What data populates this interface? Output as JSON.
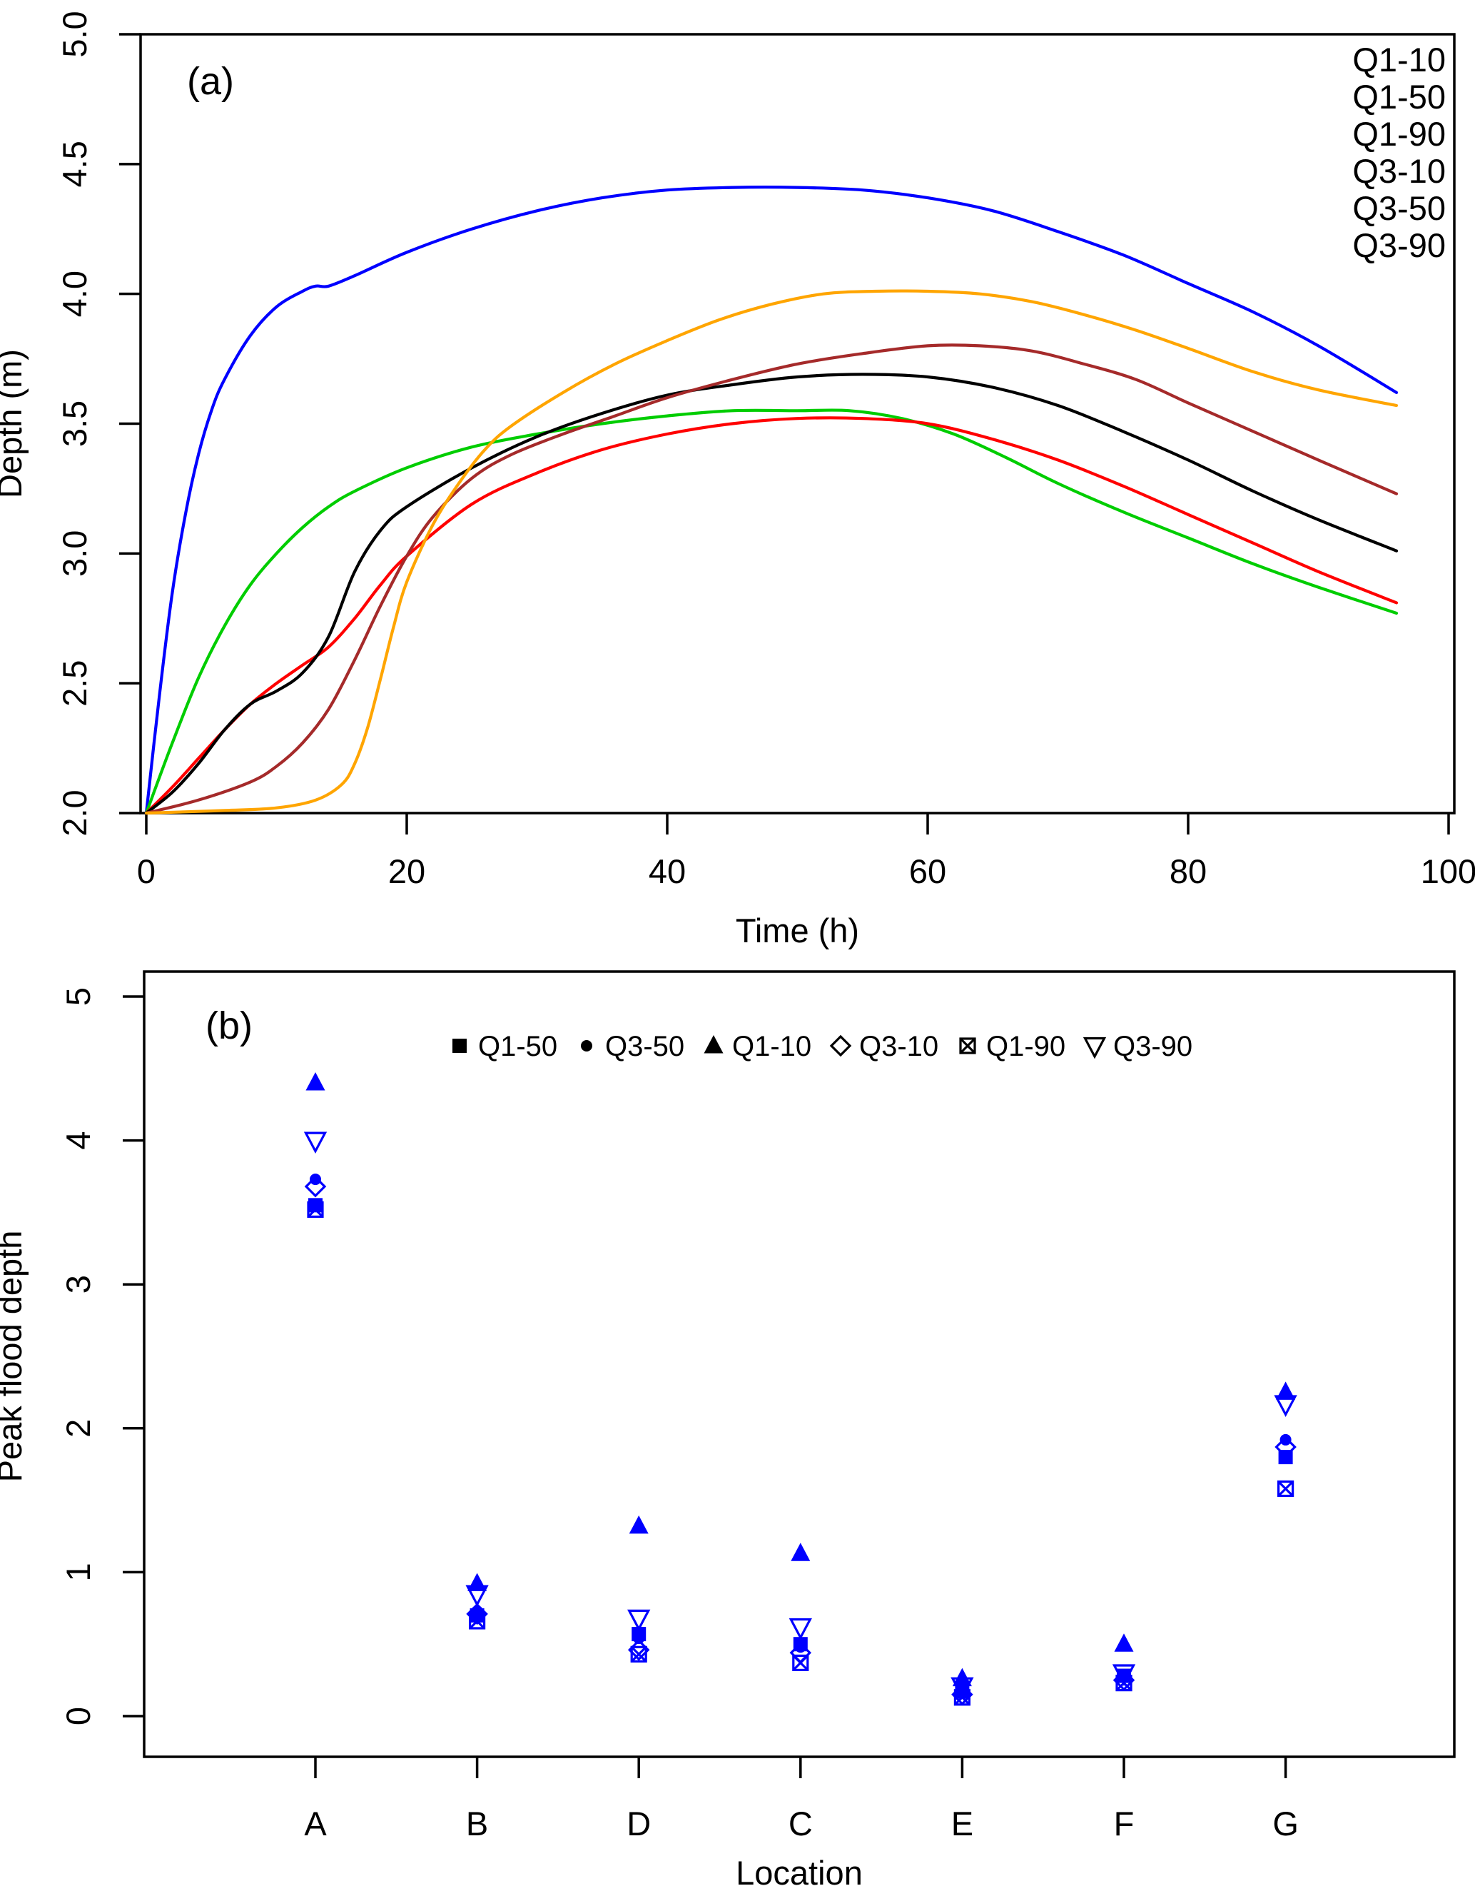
{
  "figure": {
    "background": "#ffffff",
    "marker_blue": "#0000ff"
  },
  "chart_data": [
    {
      "type": "line",
      "panel_label": "(a)",
      "xlabel": "Time (h)",
      "ylabel": "Depth (m)",
      "xlim": [
        0,
        100
      ],
      "ylim": [
        2.0,
        5.0
      ],
      "grid": false,
      "legend_position": "top-right",
      "xticks": [
        {
          "v": 0,
          "label": "0"
        },
        {
          "v": 20,
          "label": "20"
        },
        {
          "v": 40,
          "label": "40"
        },
        {
          "v": 60,
          "label": "60"
        },
        {
          "v": 80,
          "label": "80"
        },
        {
          "v": 100,
          "label": "100"
        }
      ],
      "yticks": [
        {
          "v": 2.0,
          "label": "2.0"
        },
        {
          "v": 2.5,
          "label": "2.5"
        },
        {
          "v": 3.0,
          "label": "3.0"
        },
        {
          "v": 3.5,
          "label": "3.5"
        },
        {
          "v": 4.0,
          "label": "4.0"
        },
        {
          "v": 4.5,
          "label": "4.5"
        },
        {
          "v": 5.0,
          "label": "5.0"
        }
      ],
      "series": [
        {
          "name": "Q1-10",
          "color": "#0000ff",
          "x": [
            0,
            1,
            2,
            3,
            4,
            5,
            6,
            8,
            10,
            12,
            13,
            14,
            16,
            20,
            25,
            30,
            35,
            40,
            45,
            50,
            55,
            60,
            65,
            70,
            75,
            80,
            85,
            90,
            96
          ],
          "y": [
            2.0,
            2.45,
            2.85,
            3.15,
            3.38,
            3.55,
            3.67,
            3.84,
            3.95,
            4.01,
            4.03,
            4.03,
            4.07,
            4.16,
            4.25,
            4.32,
            4.37,
            4.4,
            4.41,
            4.41,
            4.4,
            4.37,
            4.32,
            4.24,
            4.15,
            4.04,
            3.93,
            3.8,
            3.62
          ]
        },
        {
          "name": "Q1-50",
          "color": "#00cd00",
          "x": [
            0,
            2,
            4,
            6,
            8,
            10,
            12,
            14,
            16,
            20,
            25,
            30,
            35,
            40,
            45,
            50,
            54,
            58,
            62,
            66,
            70,
            75,
            80,
            85,
            90,
            96
          ],
          "y": [
            2.0,
            2.27,
            2.52,
            2.72,
            2.88,
            3.0,
            3.1,
            3.18,
            3.24,
            3.33,
            3.41,
            3.46,
            3.5,
            3.53,
            3.55,
            3.55,
            3.55,
            3.52,
            3.46,
            3.37,
            3.27,
            3.16,
            3.06,
            2.96,
            2.87,
            2.77
          ]
        },
        {
          "name": "Q1-90",
          "color": "#ff0000",
          "x": [
            0,
            2,
            4,
            6,
            8,
            10,
            12,
            14,
            16,
            18,
            20,
            25,
            30,
            35,
            40,
            45,
            50,
            55,
            60,
            65,
            70,
            75,
            80,
            85,
            90,
            96
          ],
          "y": [
            2.0,
            2.1,
            2.21,
            2.32,
            2.42,
            2.5,
            2.57,
            2.64,
            2.75,
            2.88,
            2.99,
            3.19,
            3.31,
            3.4,
            3.46,
            3.5,
            3.52,
            3.52,
            3.5,
            3.44,
            3.36,
            3.26,
            3.15,
            3.04,
            2.93,
            2.81
          ]
        },
        {
          "name": "Q3-10",
          "color": "#000000",
          "x": [
            0,
            2,
            4,
            6,
            8,
            10,
            12,
            14,
            16,
            18,
            20,
            25,
            30,
            35,
            40,
            45,
            50,
            55,
            60,
            65,
            70,
            75,
            80,
            85,
            90,
            96
          ],
          "y": [
            2.0,
            2.08,
            2.19,
            2.32,
            2.42,
            2.47,
            2.54,
            2.68,
            2.93,
            3.09,
            3.18,
            3.33,
            3.45,
            3.54,
            3.61,
            3.65,
            3.68,
            3.69,
            3.68,
            3.64,
            3.57,
            3.47,
            3.36,
            3.24,
            3.13,
            3.01
          ]
        },
        {
          "name": "Q3-50",
          "color": "#a52a2a",
          "x": [
            0,
            4,
            8,
            10,
            12,
            14,
            16,
            18,
            20,
            22,
            25,
            28,
            32,
            36,
            40,
            45,
            50,
            55,
            60,
            64,
            68,
            72,
            76,
            80,
            85,
            90,
            96
          ],
          "y": [
            2.0,
            2.05,
            2.12,
            2.18,
            2.27,
            2.4,
            2.59,
            2.8,
            2.99,
            3.14,
            3.29,
            3.38,
            3.46,
            3.53,
            3.6,
            3.67,
            3.73,
            3.77,
            3.8,
            3.8,
            3.78,
            3.73,
            3.67,
            3.58,
            3.47,
            3.36,
            3.23
          ]
        },
        {
          "name": "Q3-90",
          "color": "#ffa500",
          "x": [
            0,
            6,
            10,
            13,
            15,
            16,
            17,
            18,
            19,
            20,
            22,
            24,
            26,
            28,
            32,
            36,
            40,
            44,
            48,
            52,
            56,
            60,
            64,
            68,
            72,
            76,
            80,
            85,
            90,
            96
          ],
          "y": [
            2.0,
            2.01,
            2.02,
            2.05,
            2.11,
            2.19,
            2.33,
            2.52,
            2.72,
            2.89,
            3.11,
            3.27,
            3.4,
            3.49,
            3.62,
            3.73,
            3.82,
            3.9,
            3.96,
            4.0,
            4.01,
            4.01,
            4.0,
            3.97,
            3.92,
            3.86,
            3.79,
            3.7,
            3.63,
            3.57
          ]
        }
      ]
    },
    {
      "type": "scatter",
      "panel_label": "(b)",
      "xlabel": "Location",
      "ylabel": "Peak flood depth",
      "ylim": [
        0,
        5
      ],
      "grid": false,
      "legend_position": "top-center",
      "marker_color": "#0000ff",
      "legend_symbol_color": "#000000",
      "yticks": [
        {
          "v": 0,
          "label": "0"
        },
        {
          "v": 1,
          "label": "1"
        },
        {
          "v": 2,
          "label": "2"
        },
        {
          "v": 3,
          "label": "3"
        },
        {
          "v": 4,
          "label": "4"
        },
        {
          "v": 5,
          "label": "5"
        }
      ],
      "categories": [
        "A",
        "B",
        "D",
        "C",
        "E",
        "F",
        "G"
      ],
      "series": [
        {
          "name": "Q1-50",
          "marker": "filled-square",
          "values": [
            3.55,
            0.7,
            0.57,
            0.5,
            0.17,
            0.28,
            1.8
          ]
        },
        {
          "name": "Q3-50",
          "marker": "filled-circle",
          "values": [
            3.73,
            0.73,
            0.54,
            0.48,
            0.18,
            0.27,
            1.92
          ]
        },
        {
          "name": "Q1-10",
          "marker": "filled-triangle-up",
          "values": [
            4.4,
            0.92,
            1.32,
            1.13,
            0.26,
            0.5,
            2.25
          ]
        },
        {
          "name": "Q3-10",
          "marker": "open-diamond",
          "values": [
            3.68,
            0.71,
            0.46,
            0.44,
            0.15,
            0.25,
            1.87
          ]
        },
        {
          "name": "Q1-90",
          "marker": "crossed-square",
          "values": [
            3.52,
            0.66,
            0.43,
            0.37,
            0.13,
            0.23,
            1.58
          ]
        },
        {
          "name": "Q3-90",
          "marker": "open-triangle-down",
          "values": [
            4.0,
            0.85,
            0.68,
            0.62,
            0.21,
            0.3,
            2.17
          ]
        }
      ]
    }
  ]
}
